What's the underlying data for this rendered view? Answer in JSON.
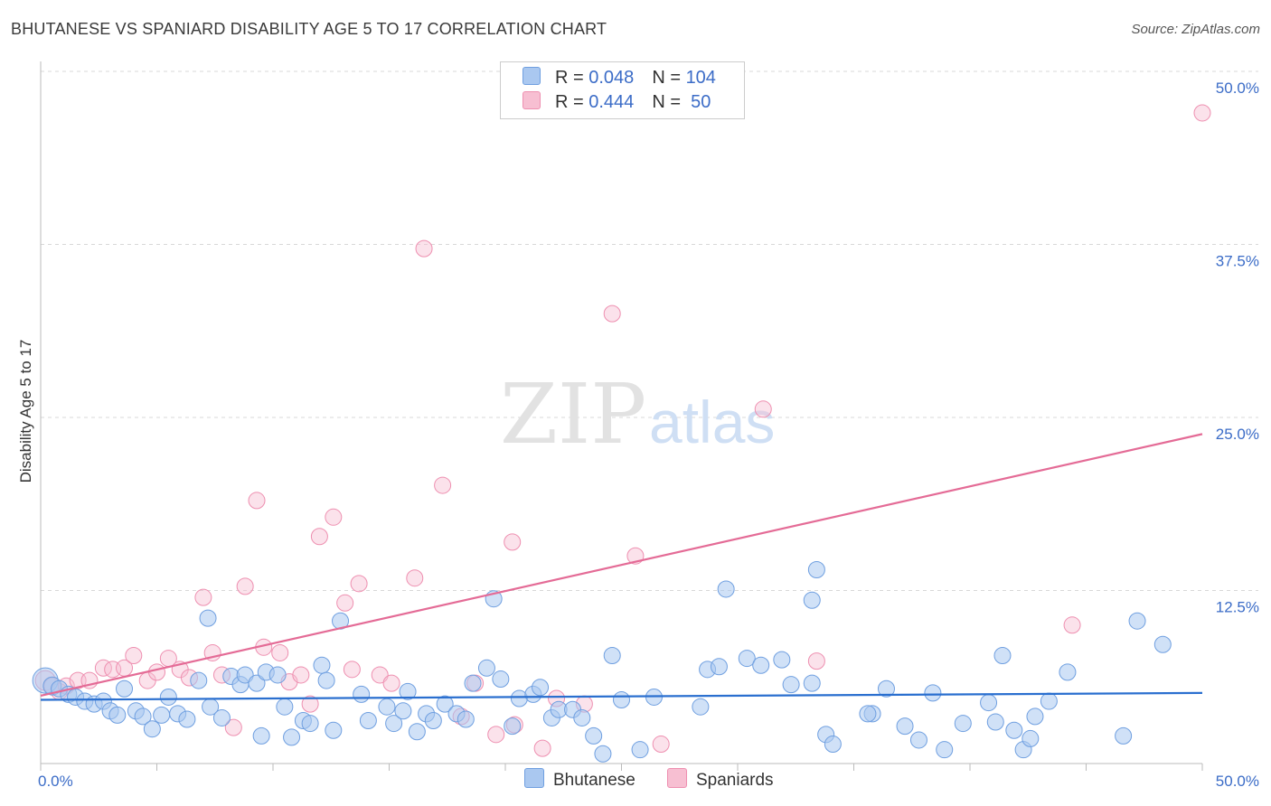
{
  "title": "BHUTANESE VS SPANIARD DISABILITY AGE 5 TO 17 CORRELATION CHART",
  "source": "Source: ZipAtlas.com",
  "watermark": {
    "zip": "ZIP",
    "atlas": "atlas"
  },
  "legend_top": {
    "rows": [
      {
        "r_label": "R = ",
        "r_value": "0.048",
        "n_label": "N = ",
        "n_value": "104"
      },
      {
        "r_label": "R = ",
        "r_value": "0.444",
        "n_label": "N = ",
        "n_value": " 50"
      }
    ]
  },
  "legend_bottom": {
    "series1": "Bhutanese",
    "series2": "Spaniards"
  },
  "colors": {
    "blue_fill": "#aac8f0",
    "blue_stroke": "#6f9fe0",
    "blue_line": "#2a6fcf",
    "pink_fill": "#f7bfd2",
    "pink_stroke": "#ee8fb0",
    "pink_line": "#e46b96",
    "grid": "#d8d8d8",
    "tick_label": "#3b6cc7"
  },
  "chart_data": {
    "type": "scatter",
    "title": "BHUTANESE VS SPANIARD DISABILITY AGE 5 TO 17 CORRELATION CHART",
    "xlabel": "",
    "ylabel": "Disability Age 5 to 17",
    "xlim": [
      0,
      50
    ],
    "ylim": [
      0,
      50
    ],
    "x_tick_labels": [
      "0.0%",
      "50.0%"
    ],
    "y_ticks": [
      12.5,
      25.0,
      37.5,
      50.0
    ],
    "y_tick_labels": [
      "12.5%",
      "25.0%",
      "37.5%",
      "50.0%"
    ],
    "series": [
      {
        "name": "Bhutanese",
        "R": 0.048,
        "N": 104,
        "trend": {
          "x": [
            0,
            50
          ],
          "y": [
            4.6,
            5.1
          ]
        },
        "points": [
          [
            0.2,
            6.0,
            14
          ],
          [
            0.5,
            5.6,
            10
          ],
          [
            0.8,
            5.4,
            9
          ],
          [
            1.2,
            5.0,
            9
          ],
          [
            1.5,
            4.8,
            9
          ],
          [
            1.9,
            4.5,
            9
          ],
          [
            2.3,
            4.3,
            9
          ],
          [
            2.7,
            4.5,
            9
          ],
          [
            3.0,
            3.8,
            9
          ],
          [
            3.3,
            3.5,
            9
          ],
          [
            3.6,
            5.4,
            9
          ],
          [
            4.1,
            3.8,
            9
          ],
          [
            4.4,
            3.4,
            9
          ],
          [
            4.8,
            2.5,
            9
          ],
          [
            5.2,
            3.5,
            9
          ],
          [
            5.5,
            4.8,
            9
          ],
          [
            5.9,
            3.6,
            9
          ],
          [
            6.3,
            3.2,
            9
          ],
          [
            6.8,
            6.0,
            9
          ],
          [
            7.2,
            10.5,
            9
          ],
          [
            7.3,
            4.1,
            9
          ],
          [
            7.8,
            3.3,
            9
          ],
          [
            8.2,
            6.3,
            9
          ],
          [
            8.6,
            5.7,
            9
          ],
          [
            8.8,
            6.4,
            9
          ],
          [
            9.3,
            5.8,
            9
          ],
          [
            9.5,
            2.0,
            9
          ],
          [
            9.7,
            6.6,
            9
          ],
          [
            10.2,
            6.4,
            9
          ],
          [
            10.5,
            4.1,
            9
          ],
          [
            10.8,
            1.9,
            9
          ],
          [
            11.3,
            3.1,
            9
          ],
          [
            11.6,
            2.9,
            9
          ],
          [
            12.1,
            7.1,
            9
          ],
          [
            12.3,
            6.0,
            9
          ],
          [
            12.6,
            2.4,
            9
          ],
          [
            12.9,
            10.3,
            9
          ],
          [
            13.8,
            5.0,
            9
          ],
          [
            14.1,
            3.1,
            9
          ],
          [
            14.9,
            4.1,
            9
          ],
          [
            15.2,
            2.9,
            9
          ],
          [
            15.6,
            3.8,
            9
          ],
          [
            15.8,
            5.2,
            9
          ],
          [
            16.2,
            2.3,
            9
          ],
          [
            16.6,
            3.6,
            9
          ],
          [
            16.9,
            3.1,
            9
          ],
          [
            17.4,
            4.3,
            9
          ],
          [
            17.9,
            3.6,
            9
          ],
          [
            18.3,
            3.2,
            9
          ],
          [
            18.6,
            5.8,
            9
          ],
          [
            19.2,
            6.9,
            9
          ],
          [
            19.5,
            11.9,
            9
          ],
          [
            19.8,
            6.1,
            9
          ],
          [
            20.3,
            2.7,
            9
          ],
          [
            20.6,
            4.7,
            9
          ],
          [
            21.2,
            5.0,
            9
          ],
          [
            21.5,
            5.5,
            9
          ],
          [
            22.0,
            3.3,
            9
          ],
          [
            22.3,
            3.9,
            9
          ],
          [
            22.9,
            3.9,
            9
          ],
          [
            23.3,
            3.3,
            9
          ],
          [
            23.8,
            2.0,
            9
          ],
          [
            24.2,
            0.7,
            9
          ],
          [
            24.6,
            7.8,
            9
          ],
          [
            25.0,
            4.6,
            9
          ],
          [
            25.8,
            1.0,
            9
          ],
          [
            26.4,
            4.8,
            9
          ],
          [
            28.4,
            4.1,
            9
          ],
          [
            28.7,
            6.8,
            9
          ],
          [
            29.2,
            7.0,
            9
          ],
          [
            29.5,
            12.6,
            9
          ],
          [
            30.4,
            7.6,
            9
          ],
          [
            31.0,
            7.1,
            9
          ],
          [
            31.9,
            7.5,
            9
          ],
          [
            32.3,
            5.7,
            9
          ],
          [
            33.2,
            11.8,
            9
          ],
          [
            33.4,
            14.0,
            9
          ],
          [
            33.2,
            5.8,
            9
          ],
          [
            33.8,
            2.1,
            9
          ],
          [
            34.1,
            1.4,
            9
          ],
          [
            35.8,
            3.6,
            9
          ],
          [
            35.6,
            3.6,
            9
          ],
          [
            36.4,
            5.4,
            9
          ],
          [
            37.2,
            2.7,
            9
          ],
          [
            37.8,
            1.7,
            9
          ],
          [
            38.4,
            5.1,
            9
          ],
          [
            38.9,
            1.0,
            9
          ],
          [
            39.7,
            2.9,
            9
          ],
          [
            40.8,
            4.4,
            9
          ],
          [
            41.1,
            3.0,
            9
          ],
          [
            41.4,
            7.8,
            9
          ],
          [
            41.9,
            2.4,
            9
          ],
          [
            42.3,
            1.0,
            9
          ],
          [
            42.6,
            1.8,
            9
          ],
          [
            42.8,
            3.4,
            9
          ],
          [
            43.4,
            4.5,
            9
          ],
          [
            44.2,
            6.6,
            9
          ],
          [
            46.6,
            2.0,
            9
          ],
          [
            47.2,
            10.3,
            9
          ],
          [
            48.3,
            8.6,
            9
          ]
        ]
      },
      {
        "name": "Spaniards",
        "R": 0.444,
        "N": 50,
        "trend": {
          "x": [
            0,
            50
          ],
          "y": [
            4.9,
            23.8
          ]
        },
        "points": [
          [
            0.2,
            6.0,
            11
          ],
          [
            0.5,
            5.6,
            9
          ],
          [
            0.8,
            5.2,
            9
          ],
          [
            1.1,
            5.6,
            9
          ],
          [
            1.6,
            6.0,
            9
          ],
          [
            2.1,
            6.0,
            9
          ],
          [
            2.7,
            6.9,
            9
          ],
          [
            3.1,
            6.8,
            9
          ],
          [
            3.6,
            6.9,
            9
          ],
          [
            4.0,
            7.8,
            9
          ],
          [
            4.6,
            6.0,
            9
          ],
          [
            5.0,
            6.6,
            9
          ],
          [
            5.5,
            7.6,
            9
          ],
          [
            6.0,
            6.8,
            9
          ],
          [
            6.4,
            6.2,
            9
          ],
          [
            7.0,
            12.0,
            9
          ],
          [
            7.4,
            8.0,
            9
          ],
          [
            7.8,
            6.4,
            9
          ],
          [
            8.3,
            2.6,
            9
          ],
          [
            8.8,
            12.8,
            9
          ],
          [
            9.3,
            19.0,
            9
          ],
          [
            9.6,
            8.4,
            9
          ],
          [
            10.3,
            8.0,
            9
          ],
          [
            10.7,
            5.9,
            9
          ],
          [
            11.2,
            6.4,
            9
          ],
          [
            11.6,
            4.3,
            9
          ],
          [
            12.0,
            16.4,
            9
          ],
          [
            12.6,
            17.8,
            9
          ],
          [
            13.1,
            11.6,
            9
          ],
          [
            13.4,
            6.8,
            9
          ],
          [
            13.7,
            13.0,
            9
          ],
          [
            14.6,
            6.4,
            9
          ],
          [
            15.1,
            5.8,
            9
          ],
          [
            16.1,
            13.4,
            9
          ],
          [
            16.5,
            37.2,
            9
          ],
          [
            17.3,
            20.1,
            9
          ],
          [
            18.1,
            3.4,
            9
          ],
          [
            18.7,
            5.8,
            9
          ],
          [
            19.6,
            2.1,
            9
          ],
          [
            20.3,
            16.0,
            9
          ],
          [
            20.4,
            2.8,
            9
          ],
          [
            21.6,
            1.1,
            9
          ],
          [
            22.2,
            4.7,
            9
          ],
          [
            23.4,
            4.3,
            9
          ],
          [
            24.6,
            32.5,
            9
          ],
          [
            25.6,
            15.0,
            9
          ],
          [
            26.7,
            1.4,
            9
          ],
          [
            31.1,
            25.6,
            9
          ],
          [
            33.4,
            7.4,
            9
          ],
          [
            44.4,
            10.0,
            9
          ],
          [
            50.0,
            47.0,
            9
          ]
        ]
      }
    ]
  }
}
